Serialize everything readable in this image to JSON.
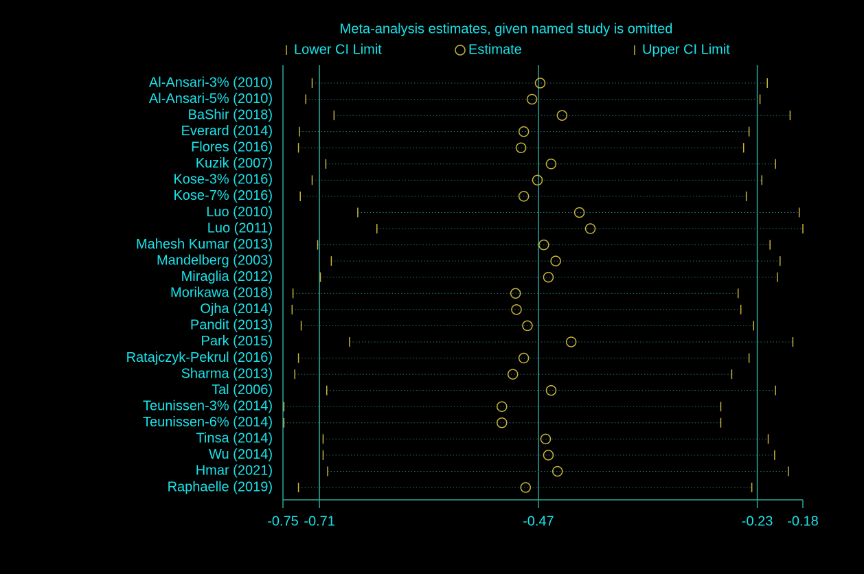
{
  "chart_data": {
    "type": "influence",
    "title": "Meta-analysis estimates, given named study is omitted",
    "categories": [
      "Al-Ansari-3% (2010)",
      "Al-Ansari-5% (2010)",
      "BaShir (2018)",
      "Everard (2014)",
      "Flores (2016)",
      "Kuzik (2007)",
      "Kose-3% (2016)",
      "Kose-7% (2016)",
      "Luo (2010)",
      "Luo (2011)",
      "Mahesh Kumar (2013)",
      "Mandelberg (2003)",
      "Miraglia (2012)",
      "Morikawa (2018)",
      "Ojha (2014)",
      "Pandit (2013)",
      "Park (2015)",
      "Ratajczyk-Pekrul (2016)",
      "Sharma (2013)",
      "Tal (2006)",
      "Teunissen-3% (2014)",
      "Teunissen-6% (2014)",
      "Tinsa (2014)",
      "Wu (2014)",
      "Hmar (2021)",
      "Raphaelle (2019)"
    ],
    "series": [
      {
        "name": "Lower CI Limit",
        "color": "#c9b43a",
        "values": [
          -0.718,
          -0.725,
          -0.694,
          -0.732,
          -0.733,
          -0.703,
          -0.718,
          -0.731,
          -0.668,
          -0.647,
          -0.712,
          -0.697,
          -0.709,
          -0.739,
          -0.74,
          -0.73,
          -0.677,
          -0.733,
          -0.737,
          -0.702,
          -0.749,
          -0.749,
          -0.706,
          -0.706,
          -0.701,
          -0.733
        ]
      },
      {
        "name": "Estimate",
        "color": "#c9b43a",
        "values": [
          -0.468,
          -0.477,
          -0.444,
          -0.486,
          -0.489,
          -0.456,
          -0.471,
          -0.486,
          -0.425,
          -0.413,
          -0.464,
          -0.451,
          -0.459,
          -0.495,
          -0.494,
          -0.482,
          -0.434,
          -0.486,
          -0.498,
          -0.456,
          -0.51,
          -0.51,
          -0.462,
          -0.459,
          -0.449,
          -0.484
        ]
      },
      {
        "name": "Upper CI Limit",
        "color": "#c9b43a",
        "values": [
          -0.219,
          -0.227,
          -0.194,
          -0.239,
          -0.245,
          -0.21,
          -0.225,
          -0.242,
          -0.184,
          -0.18,
          -0.216,
          -0.205,
          -0.208,
          -0.251,
          -0.248,
          -0.234,
          -0.191,
          -0.239,
          -0.258,
          -0.21,
          -0.27,
          -0.27,
          -0.218,
          -0.211,
          -0.196,
          -0.236
        ]
      }
    ],
    "overall": {
      "lower": -0.71,
      "estimate": -0.47,
      "upper": -0.23
    },
    "xlim": [
      -0.75,
      -0.18
    ],
    "xticks": [
      -0.75,
      -0.71,
      -0.47,
      -0.23,
      -0.18
    ]
  }
}
